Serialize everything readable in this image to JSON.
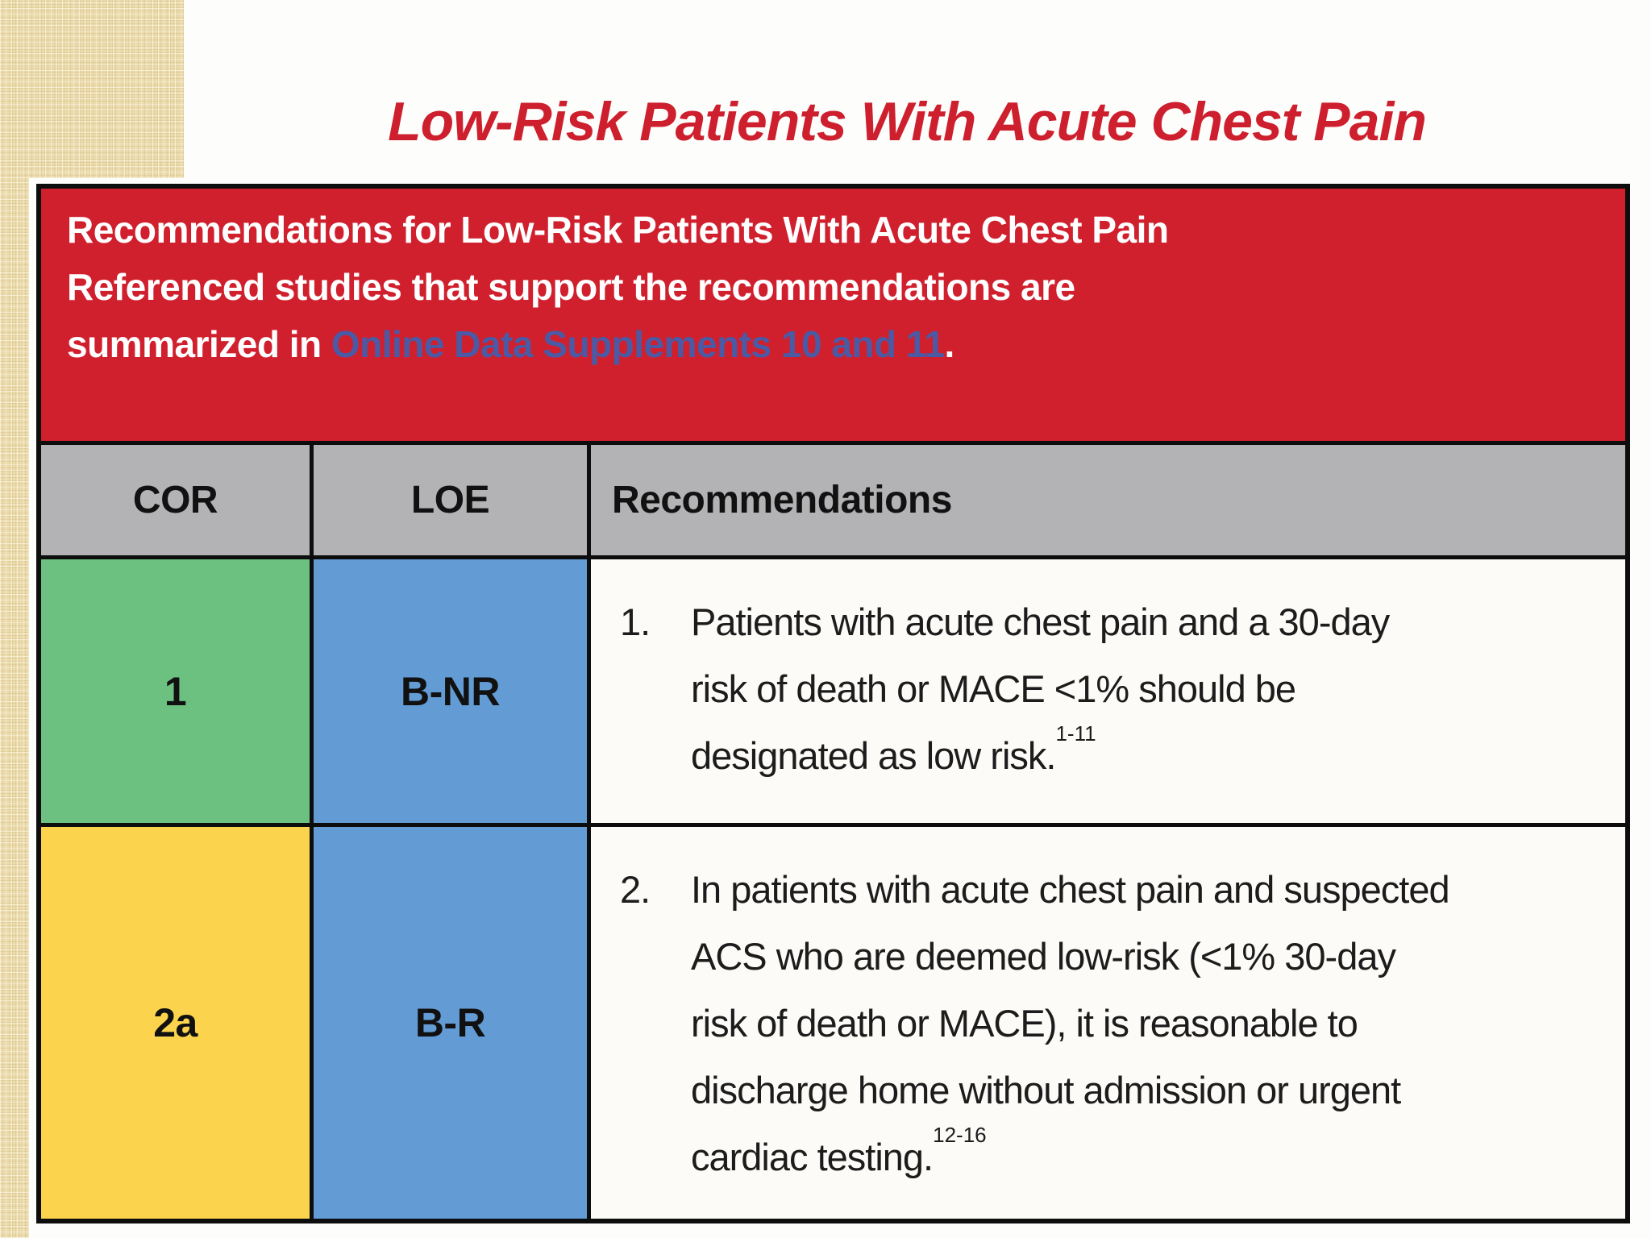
{
  "title": "Low-Risk Patients With Acute Chest Pain",
  "banner": {
    "line1": "Recommendations for Low-Risk Patients With Acute Chest Pain",
    "line2": "Referenced studies that support the recommendations are",
    "line3_prefix": "summarized in ",
    "line3_link": "Online Data Supplements 10 and 11",
    "line3_suffix": "."
  },
  "table": {
    "headers": {
      "cor": "COR",
      "loe": "LOE",
      "recommendations": "Recommendations"
    },
    "rows": [
      {
        "cor": "1",
        "loe": "B-NR",
        "number": "1.",
        "lines": [
          "Patients with acute chest pain and a 30-day",
          "risk of death or MACE <1% should be",
          "designated as low risk."
        ],
        "citation": "1-11"
      },
      {
        "cor": "2a",
        "loe": "B-R",
        "number": "2.",
        "lines": [
          "In patients with acute chest pain and suspected",
          "ACS who are deemed low-risk (<1% 30-day",
          "risk of death or MACE), it is reasonable to",
          "discharge home without admission or urgent",
          "cardiac testing."
        ],
        "citation": "12-16"
      }
    ]
  },
  "colors": {
    "banner_red": "#d0202e",
    "title_red": "#cd1f2d",
    "link_blue": "#4b5aa5",
    "header_gray": "#b3b2b4",
    "cor_1_green": "#6cc181",
    "cor_2a_yellow": "#fbd34d",
    "loe_blue": "#639cd5",
    "accent_beige": "#ecdcae",
    "border_black": "#0d0d0d"
  }
}
